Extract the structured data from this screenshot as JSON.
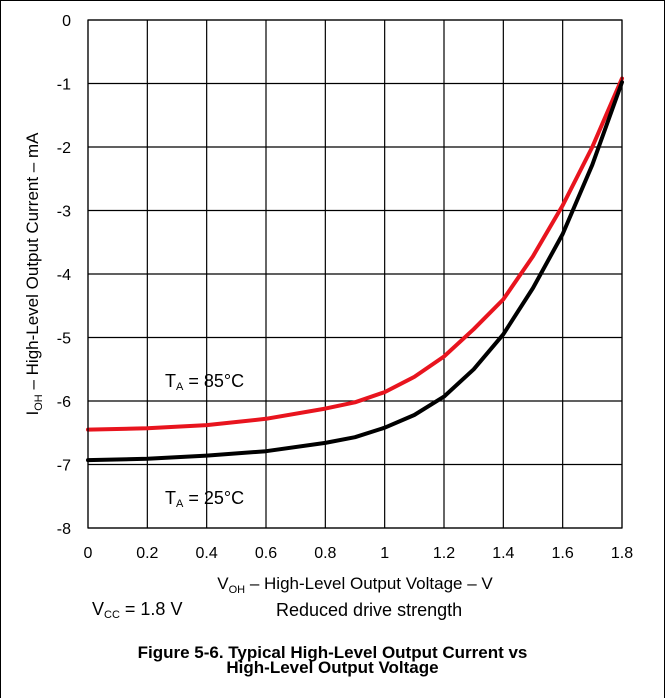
{
  "chart_data": {
    "type": "line",
    "xlim": [
      0,
      1.8
    ],
    "ylim": [
      -8,
      0
    ],
    "x_ticks": [
      "0",
      "0.2",
      "0.4",
      "0.6",
      "0.8",
      "1",
      "1.2",
      "1.4",
      "1.6",
      "1.8"
    ],
    "y_ticks": [
      "0",
      "-1",
      "-2",
      "-3",
      "-4",
      "-5",
      "-6",
      "-7",
      "-8"
    ],
    "grid": true,
    "xlabel": {
      "main": "V",
      "sub": "OH",
      "rest": " – High-Level Output Voltage – V"
    },
    "ylabel": {
      "main": "I",
      "sub": "OH",
      "rest": " – High-Level Output Current – mA"
    },
    "series": [
      {
        "name": "T_A = 85°C",
        "color": "#e8141e",
        "points": [
          [
            0,
            -6.45
          ],
          [
            0.2,
            -6.43
          ],
          [
            0.4,
            -6.38
          ],
          [
            0.6,
            -6.28
          ],
          [
            0.8,
            -6.12
          ],
          [
            0.9,
            -6.02
          ],
          [
            1.0,
            -5.86
          ],
          [
            1.1,
            -5.62
          ],
          [
            1.2,
            -5.3
          ],
          [
            1.3,
            -4.87
          ],
          [
            1.4,
            -4.4
          ],
          [
            1.5,
            -3.72
          ],
          [
            1.6,
            -2.92
          ],
          [
            1.7,
            -2.0
          ],
          [
            1.8,
            -0.92
          ]
        ]
      },
      {
        "name": "T_A = 25°C",
        "color": "#000000",
        "points": [
          [
            0,
            -6.93
          ],
          [
            0.2,
            -6.91
          ],
          [
            0.4,
            -6.86
          ],
          [
            0.6,
            -6.79
          ],
          [
            0.8,
            -6.66
          ],
          [
            0.9,
            -6.57
          ],
          [
            1.0,
            -6.42
          ],
          [
            1.1,
            -6.22
          ],
          [
            1.2,
            -5.93
          ],
          [
            1.3,
            -5.5
          ],
          [
            1.4,
            -4.95
          ],
          [
            1.5,
            -4.22
          ],
          [
            1.6,
            -3.37
          ],
          [
            1.7,
            -2.28
          ],
          [
            1.8,
            -0.98
          ]
        ]
      }
    ]
  },
  "labels": {
    "t85": {
      "main": "T",
      "sub": "A",
      "rest": " = 85°C"
    },
    "t25": {
      "main": "T",
      "sub": "A",
      "rest": " = 25°C"
    },
    "vcc": {
      "main": "V",
      "sub": "CC",
      "rest": " = 1.8 V"
    },
    "drive": "Reduced drive strength"
  },
  "caption": {
    "line1": "Figure 5-6. Typical High-Level Output Current vs",
    "line2": "High-Level Output Voltage"
  }
}
